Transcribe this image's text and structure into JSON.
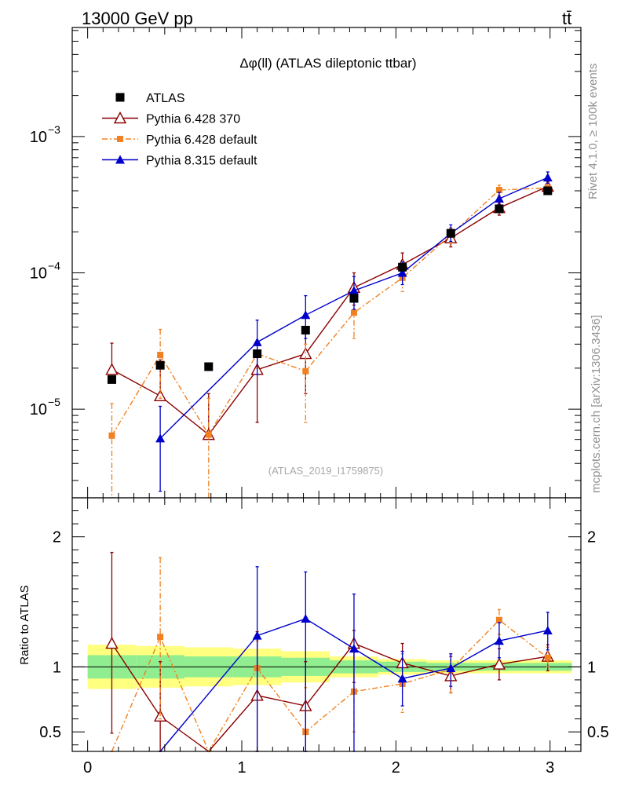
{
  "header": {
    "energy": "13000 GeV pp",
    "process": "tt̄"
  },
  "side": {
    "rivet": "Rivet 4.1.0, ≥ 100k events",
    "source": "mcplots.cern.ch [arXiv:1306.3436]"
  },
  "chart_data": {
    "type": "line",
    "title": "Δφ(ll) (ATLAS dileptonic ttbar)",
    "watermark": "(ATLAS_2019_I1759875)",
    "xlabel": "",
    "ylabel_ratio": "Ratio to ATLAS",
    "xlim": [
      -0.1,
      3.2
    ],
    "ylim_main_log10": [
      -5.65,
      -2.2
    ],
    "ylim_ratio": [
      0.35,
      2.3
    ],
    "x_ticks": [
      "0",
      "1",
      "2",
      "3"
    ],
    "y_ticks_main": [
      {
        "label": "10",
        "exp": "−3",
        "value": 0.001
      },
      {
        "label": "10",
        "exp": "−4",
        "value": 0.0001
      },
      {
        "label": "10",
        "exp": "−5",
        "value": 1e-05
      }
    ],
    "y_ticks_ratio": [
      "0.5",
      "1",
      "2"
    ],
    "x": [
      0.157,
      0.471,
      0.785,
      1.1,
      1.414,
      1.728,
      2.042,
      2.356,
      2.67,
      2.985
    ],
    "data": {
      "name": "ATLAS",
      "values": [
        1.65e-05,
        2.1e-05,
        2.05e-05,
        2.55e-05,
        3.8e-05,
        6.5e-05,
        0.00011,
        0.000195,
        0.000295,
        0.0004
      ],
      "band_inner": [
        0.09,
        0.09,
        0.08,
        0.08,
        0.07,
        0.05,
        0.04,
        0.03,
        0.03,
        0.03
      ],
      "band_outer": [
        0.17,
        0.16,
        0.15,
        0.14,
        0.12,
        0.08,
        0.06,
        0.05,
        0.05,
        0.05
      ]
    },
    "series": [
      {
        "name": "Pythia 6.428 370",
        "color": "#8b0000",
        "marker": "open-triangle",
        "dash": "",
        "values": [
          1.95e-05,
          1.25e-05,
          6.5e-06,
          1.95e-05,
          2.55e-05,
          7.8e-05,
          0.000115,
          0.00018,
          0.0003,
          0.00043
        ],
        "err_lo": [
          1.9e-05,
          1.2e-05,
          6.2e-06,
          8e-06,
          1.3e-05,
          5.8e-05,
          9.3e-05,
          0.000155,
          0.000265,
          0.00039
        ],
        "err_hi": [
          3.05e-05,
          2.3e-05,
          1.3e-05,
          3e-05,
          3.8e-05,
          0.0001,
          0.00014,
          0.00021,
          0.000335,
          0.00047
        ],
        "ratio": [
          1.18,
          0.62,
          0.32,
          0.78,
          0.7,
          1.18,
          1.03,
          0.93,
          1.02,
          1.08
        ],
        "ratio_lo": [
          0.49,
          0.3,
          0.3,
          0.3,
          0.3,
          0.88,
          0.85,
          0.8,
          0.9,
          0.97
        ],
        "ratio_hi": [
          1.88,
          1.04,
          0.3,
          1.27,
          1.04,
          1.28,
          1.18,
          1.08,
          1.14,
          1.17
        ]
      },
      {
        "name": "Pythia 6.428 default",
        "color": "#f08020",
        "marker": "square",
        "dash": "7,3,2,3",
        "values": [
          6.4e-06,
          2.5e-05,
          6.5e-06,
          2.55e-05,
          1.9e-05,
          5.1e-05,
          9.2e-05,
          0.00019,
          0.000405,
          0.00042
        ],
        "err_lo": [
          2e-06,
          1.2e-05,
          2e-06,
          2e-05,
          8e-06,
          3.3e-05,
          7.3e-05,
          0.000165,
          0.00037,
          0.00039
        ],
        "err_hi": [
          1.1e-05,
          3.85e-05,
          1.2e-05,
          3e-05,
          3e-05,
          6.7e-05,
          0.00011,
          0.000215,
          0.00044,
          0.00046
        ],
        "ratio": [
          0.3,
          1.23,
          0.3,
          0.99,
          0.5,
          0.81,
          0.87,
          0.98,
          1.36,
          1.07
        ],
        "ratio_lo": [
          0.3,
          0.6,
          0.3,
          0.3,
          0.3,
          0.5,
          0.65,
          0.8,
          1.25,
          1.0
        ],
        "ratio_hi": [
          0.3,
          1.84,
          0.3,
          1.2,
          0.84,
          1.12,
          1.1,
          1.1,
          1.44,
          1.15
        ]
      },
      {
        "name": "Pythia 8.315 default",
        "color": "#0000cc",
        "marker": "triangle",
        "dash": "",
        "values": [
          null,
          6.1e-06,
          null,
          3.1e-05,
          4.9e-05,
          7.4e-05,
          0.0001,
          0.000195,
          0.00035,
          0.0005
        ],
        "err_lo": [
          null,
          2.5e-06,
          null,
          1.8e-05,
          3.3e-05,
          5.4e-05,
          8.2e-05,
          0.00017,
          0.000315,
          0.000455
        ],
        "err_hi": [
          null,
          1.05e-05,
          null,
          4.5e-05,
          6.8e-05,
          9.4e-05,
          0.00012,
          0.000225,
          0.00039,
          0.00055
        ],
        "ratio": [
          null,
          0.3,
          null,
          1.24,
          1.37,
          1.14,
          0.91,
          0.99,
          1.2,
          1.28
        ],
        "ratio_lo": [
          null,
          0.3,
          null,
          0.3,
          0.3,
          0.3,
          0.7,
          0.85,
          1.07,
          1.13
        ],
        "ratio_hi": [
          null,
          0.3,
          null,
          1.77,
          1.73,
          1.56,
          1.12,
          1.1,
          1.34,
          1.42
        ]
      }
    ]
  }
}
